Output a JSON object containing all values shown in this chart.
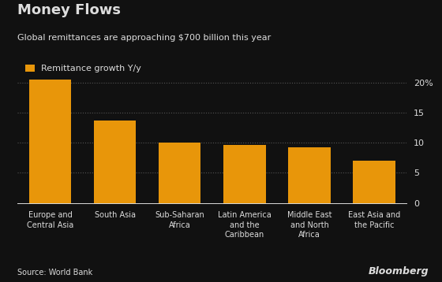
{
  "title": "Money Flows",
  "subtitle": "Global remittances are approaching $700 billion this year",
  "legend_label": "Remittance growth Y/y",
  "source": "Source: World Bank",
  "watermark": "Bloomberg",
  "categories": [
    "Europe and\nCentral Asia",
    "South Asia",
    "Sub-Saharan\nAfrica",
    "Latin America\nand the\nCaribbean",
    "Middle East\nand North\nAfrica",
    "East Asia and\nthe Pacific"
  ],
  "values": [
    20.5,
    13.7,
    10.0,
    9.6,
    9.2,
    7.0
  ],
  "bar_color": "#E8960A",
  "background_color": "#111111",
  "text_color": "#dddddd",
  "grid_color": "#555555",
  "ylim": [
    0,
    21.5
  ],
  "yticks": [
    0,
    5,
    10,
    15,
    20
  ],
  "ytick_labels": [
    "0",
    "5",
    "10",
    "15",
    "20%"
  ]
}
